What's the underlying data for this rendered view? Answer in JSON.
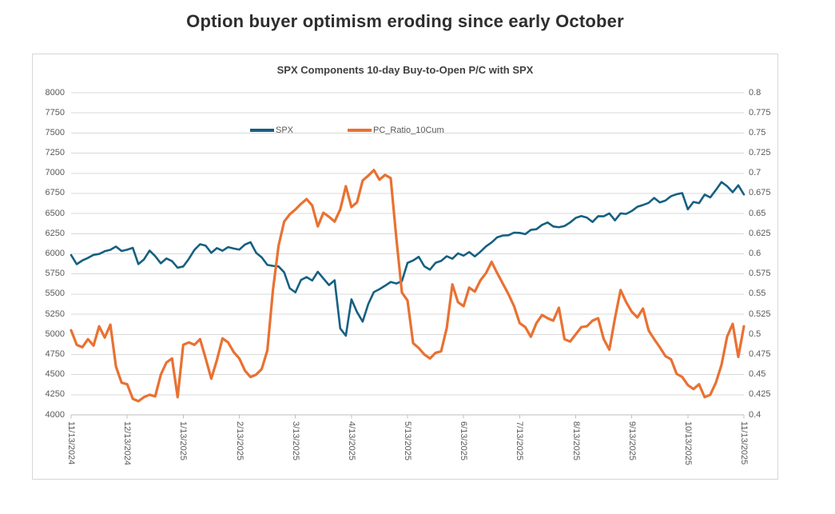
{
  "page": {
    "title": "Option buyer optimism eroding since early October"
  },
  "chart": {
    "title": "SPX Components 10-day Buy-to-Open P/C with SPX",
    "colors": {
      "spx_line": "#156082",
      "pc_ratio_line": "#E97132",
      "grid": "#D9D9D9",
      "axis_line": "#BFBFBF",
      "tick_text": "#595959",
      "chart_title_text": "#404040",
      "page_title_text": "#2E2E2E"
    },
    "legend": [
      {
        "label": "SPX",
        "color": "#156082"
      },
      {
        "label": "PC_Ratio_10Cum",
        "color": "#E97132"
      }
    ]
  },
  "chart_data": {
    "type": "line",
    "title": "SPX Components 10-day Buy-to-Open P/C with SPX",
    "grid": true,
    "legend_position": "top-inside",
    "x_tick_labels": [
      "11/13/2024",
      "12/13/2024",
      "1/13/2025",
      "2/13/2025",
      "3/13/2025",
      "4/13/2025",
      "5/13/2025",
      "6/13/2025",
      "7/13/2025",
      "8/13/2025",
      "9/13/2025",
      "10/13/2025",
      "11/13/2025"
    ],
    "left_axis": {
      "title": "",
      "min": 4000,
      "max": 8000,
      "step": 250,
      "tick_labels": [
        "8000",
        "7750",
        "7500",
        "7250",
        "7000",
        "6750",
        "6500",
        "6250",
        "6000",
        "5750",
        "5500",
        "5250",
        "5000",
        "4750",
        "4500",
        "4250",
        "4000"
      ]
    },
    "right_axis": {
      "title": "",
      "min": 0.4,
      "max": 0.8,
      "step": 0.025,
      "tick_labels": [
        "0.8",
        "0.775",
        "0.75",
        "0.725",
        "0.7",
        "0.675",
        "0.65",
        "0.625",
        "0.6",
        "0.575",
        "0.55",
        "0.525",
        "0.5",
        "0.475",
        "0.45",
        "0.425",
        "0.4"
      ]
    },
    "x": [
      "11/13/2024",
      "11/16/2024",
      "11/19/2024",
      "11/22/2024",
      "11/25/2024",
      "11/28/2024",
      "12/1/2024",
      "12/4/2024",
      "12/7/2024",
      "12/10/2024",
      "12/13/2024",
      "12/16/2024",
      "12/19/2024",
      "12/22/2024",
      "12/25/2024",
      "12/28/2024",
      "12/31/2024",
      "1/3/2025",
      "1/6/2025",
      "1/9/2025",
      "1/13/2025",
      "1/16/2025",
      "1/19/2025",
      "1/22/2025",
      "1/25/2025",
      "1/28/2025",
      "1/31/2025",
      "2/3/2025",
      "2/6/2025",
      "2/9/2025",
      "2/13/2025",
      "2/16/2025",
      "2/19/2025",
      "2/22/2025",
      "2/25/2025",
      "2/28/2025",
      "3/3/2025",
      "3/5/2025",
      "3/7/2025",
      "3/10/2025",
      "3/13/2025",
      "3/16/2025",
      "3/19/2025",
      "3/22/2025",
      "3/25/2025",
      "3/28/2025",
      "3/31/2025",
      "4/2/2025",
      "4/5/2025",
      "4/8/2025",
      "4/13/2025",
      "4/16/2025",
      "4/19/2025",
      "4/22/2025",
      "4/25/2025",
      "4/28/2025",
      "5/1/2025",
      "5/4/2025",
      "5/7/2025",
      "5/10/2025",
      "5/13/2025",
      "5/16/2025",
      "5/19/2025",
      "5/22/2025",
      "5/25/2025",
      "5/28/2025",
      "5/31/2025",
      "6/3/2025",
      "6/6/2025",
      "6/9/2025",
      "6/13/2025",
      "6/16/2025",
      "6/19/2025",
      "6/22/2025",
      "6/25/2025",
      "6/28/2025",
      "7/1/2025",
      "7/3/2025",
      "7/7/2025",
      "7/10/2025",
      "7/13/2025",
      "7/16/2025",
      "7/19/2025",
      "7/22/2025",
      "7/25/2025",
      "7/28/2025",
      "7/31/2025",
      "8/3/2025",
      "8/6/2025",
      "8/9/2025",
      "8/13/2025",
      "8/16/2025",
      "8/19/2025",
      "8/22/2025",
      "8/25/2025",
      "8/28/2025",
      "8/31/2025",
      "9/2/2025",
      "9/5/2025",
      "9/8/2025",
      "9/11/2025",
      "9/14/2025",
      "9/17/2025",
      "9/20/2025",
      "9/23/2025",
      "9/26/2025",
      "9/29/2025",
      "10/2/2025",
      "10/5/2025",
      "10/8/2025",
      "10/11/2025",
      "10/14/2025",
      "10/17/2025",
      "10/20/2025",
      "10/23/2025",
      "10/26/2025",
      "10/29/2025",
      "11/1/2025",
      "11/4/2025",
      "11/8/2025",
      "11/13/2025"
    ],
    "series": [
      {
        "name": "SPX",
        "yaxis": "left",
        "color": "#156082",
        "values": [
          5985,
          5871,
          5917,
          5949,
          5987,
          5998,
          6032,
          6050,
          6090,
          6035,
          6051,
          6074,
          5872,
          5931,
          6040,
          5971,
          5882,
          5942,
          5909,
          5827,
          5843,
          5937,
          6049,
          6119,
          6101,
          6012,
          6071,
          6038,
          6083,
          6066,
          6052,
          6115,
          6144,
          6013,
          5955,
          5862,
          5850,
          5843,
          5770,
          5572,
          5521,
          5675,
          5711,
          5668,
          5777,
          5693,
          5612,
          5671,
          5074,
          4983,
          5435,
          5276,
          5158,
          5376,
          5525,
          5561,
          5604,
          5650,
          5631,
          5660,
          5887,
          5917,
          5963,
          5845,
          5803,
          5888,
          5912,
          5970,
          5939,
          6006,
          5977,
          6022,
          5968,
          6025,
          6092,
          6141,
          6205,
          6227,
          6230,
          6263,
          6260,
          6244,
          6297,
          6306,
          6359,
          6389,
          6339,
          6330,
          6345,
          6389,
          6446,
          6469,
          6449,
          6395,
          6467,
          6466,
          6502,
          6415,
          6502,
          6495,
          6532,
          6584,
          6606,
          6632,
          6694,
          6638,
          6661,
          6715,
          6740,
          6754,
          6552,
          6644,
          6629,
          6735,
          6700,
          6792,
          6891,
          6840,
          6765,
          6851,
          6737
        ]
      },
      {
        "name": "PC_Ratio_10Cum",
        "yaxis": "right",
        "color": "#E97132",
        "values": [
          0.505,
          0.487,
          0.484,
          0.494,
          0.486,
          0.51,
          0.496,
          0.512,
          0.46,
          0.44,
          0.438,
          0.42,
          0.417,
          0.422,
          0.425,
          0.423,
          0.45,
          0.465,
          0.47,
          0.422,
          0.487,
          0.49,
          0.487,
          0.494,
          0.47,
          0.445,
          0.468,
          0.495,
          0.49,
          0.478,
          0.47,
          0.455,
          0.447,
          0.45,
          0.457,
          0.48,
          0.555,
          0.61,
          0.64,
          0.649,
          0.655,
          0.662,
          0.668,
          0.66,
          0.634,
          0.651,
          0.646,
          0.64,
          0.655,
          0.684,
          0.658,
          0.664,
          0.691,
          0.697,
          0.704,
          0.692,
          0.698,
          0.694,
          0.62,
          0.552,
          0.542,
          0.489,
          0.483,
          0.475,
          0.47,
          0.477,
          0.479,
          0.508,
          0.562,
          0.54,
          0.535,
          0.558,
          0.553,
          0.567,
          0.576,
          0.59,
          0.576,
          0.563,
          0.55,
          0.535,
          0.514,
          0.509,
          0.497,
          0.514,
          0.524,
          0.52,
          0.517,
          0.533,
          0.494,
          0.491,
          0.5,
          0.509,
          0.51,
          0.517,
          0.52,
          0.494,
          0.481,
          0.52,
          0.555,
          0.54,
          0.528,
          0.521,
          0.532,
          0.505,
          0.494,
          0.484,
          0.473,
          0.469,
          0.451,
          0.447,
          0.437,
          0.432,
          0.438,
          0.422,
          0.425,
          0.44,
          0.462,
          0.497,
          0.513,
          0.472,
          0.51
        ]
      }
    ]
  }
}
